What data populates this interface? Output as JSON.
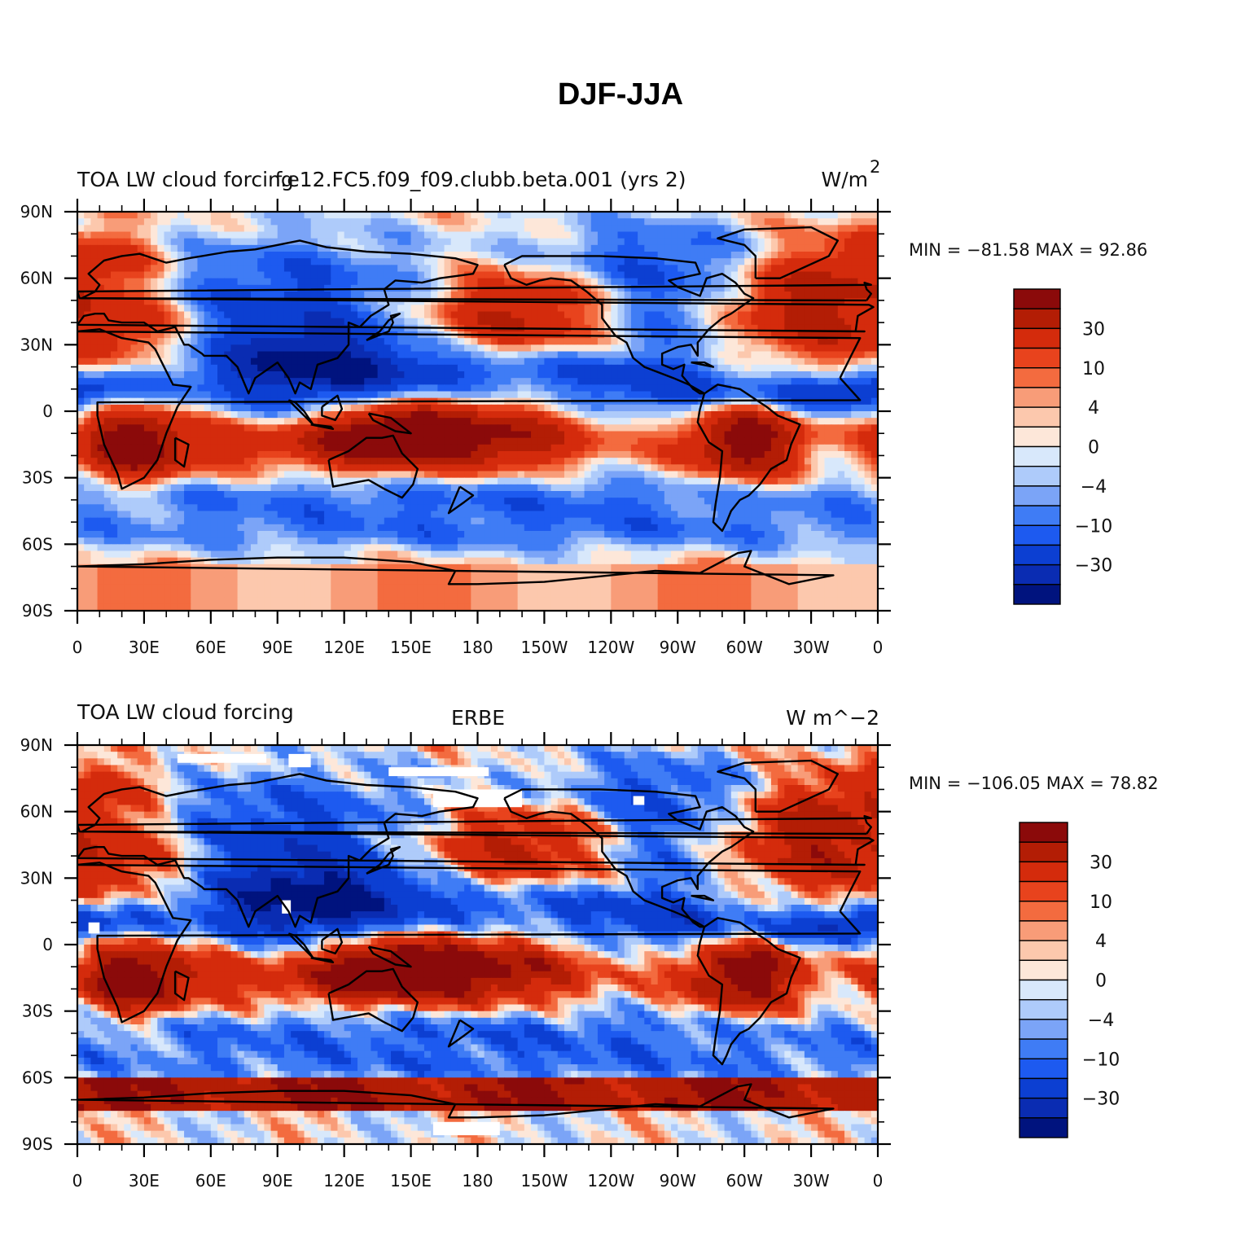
{
  "figure": {
    "title": "DJF-JJA"
  },
  "panels": [
    {
      "left_title": "TOA LW cloud forcing",
      "center_title": "f.e12.FC5.f09_f09.clubb.beta.001 (yrs 2)",
      "units_text": "W/m",
      "units_sup": "2",
      "min_max_text": "MIN = −81.58 MAX =  92.86",
      "colorbar_labels": [
        "30",
        "10",
        "4",
        "0",
        "−4",
        "−10",
        "−30"
      ],
      "missing_data": false
    },
    {
      "left_title": "TOA LW cloud forcing",
      "center_title": "ERBE",
      "units_text": "W m^−2",
      "units_sup": "",
      "min_max_text": "MIN = −106.05 MAX =  78.82",
      "colorbar_labels": [
        "30",
        "10",
        "4",
        "0",
        "−4",
        "−10",
        "−30"
      ],
      "missing_data": true
    }
  ],
  "axes": {
    "lat_labels": [
      "90N",
      "60N",
      "30N",
      "0",
      "30S",
      "60S",
      "90S"
    ],
    "lon_labels": [
      "0",
      "30E",
      "60E",
      "90E",
      "120E",
      "150E",
      "180",
      "150W",
      "120W",
      "90W",
      "60W",
      "30W",
      "0"
    ]
  },
  "colors": {
    "palette": [
      "#00137e",
      "#0a2cb2",
      "#0c3fd2",
      "#1d5af0",
      "#3f7cf5",
      "#7ba4f7",
      "#aecbfa",
      "#d8e8fb",
      "#fde7d9",
      "#fcc8ad",
      "#f89c78",
      "#f36b3f",
      "#e8431d",
      "#d42b0c",
      "#b31d05",
      "#8b0a0a"
    ],
    "missing": "#ffffff",
    "coast": "#000000"
  },
  "chart_data": {
    "type": "heatmap",
    "title": "DJF-JJA",
    "variable": "TOA LW cloud forcing",
    "units": "W/m^2",
    "contour_levels": [
      -40,
      -30,
      -20,
      -15,
      -10,
      -7,
      -4,
      -2,
      0,
      2,
      4,
      7,
      10,
      20,
      30,
      40
    ],
    "colorbar_labeled_levels": [
      30,
      10,
      4,
      0,
      -4,
      -10,
      -30
    ],
    "lat_range": [
      -90,
      90
    ],
    "lon_range": [
      0,
      360
    ],
    "panels": [
      {
        "name": "f.e12.FC5.f09_f09.clubb.beta.001 (yrs 2)",
        "min": -81.58,
        "max": 92.86
      },
      {
        "name": "ERBE",
        "min": -106.05,
        "max": 78.82
      }
    ]
  }
}
